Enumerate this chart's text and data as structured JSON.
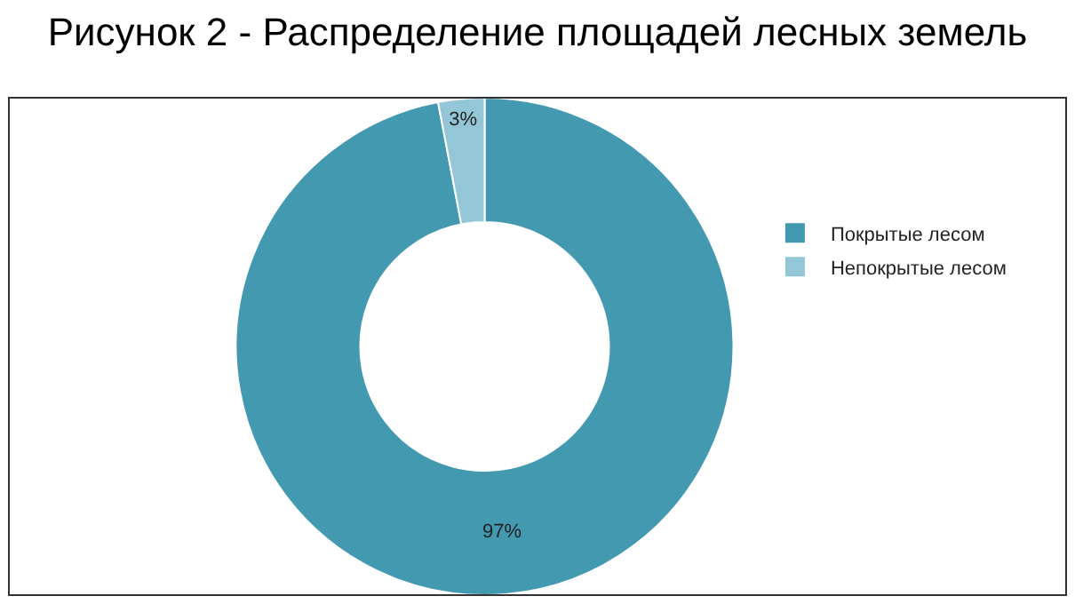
{
  "chart_data": {
    "type": "donut",
    "title": "Рисунок 2 - Распределение площадей лесных земель",
    "categories": [
      "Покрытые лесом",
      "Непокрытые лесом"
    ],
    "values": [
      97,
      3
    ],
    "colors": [
      "#4399b0",
      "#93c6d6"
    ],
    "value_labels": [
      "97%",
      "3%"
    ],
    "legend": "right"
  }
}
